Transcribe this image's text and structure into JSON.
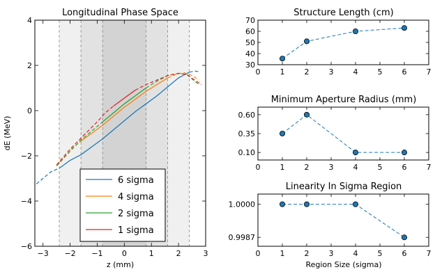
{
  "chart_data": [
    {
      "type": "line",
      "title": "Longitudinal Phase Space",
      "xlabel": "z (mm)",
      "ylabel": "dE (MeV)",
      "xlim": [
        -3.3,
        3.0
      ],
      "ylim": [
        -6,
        4
      ],
      "xticks": [
        -3,
        -2,
        -1,
        0,
        1,
        2,
        3
      ],
      "xtick_labels": [
        "−3",
        "−2",
        "−1",
        "0",
        "1",
        "2",
        "3"
      ],
      "yticks": [
        -6,
        -4,
        -2,
        0,
        2,
        4
      ],
      "ytick_labels": [
        "−6",
        "−4",
        "−2",
        "0",
        "2",
        "4"
      ],
      "shaded_regions": [
        {
          "x": [
            -2.4,
            2.4
          ],
          "color": "#f0f0f0"
        },
        {
          "x": [
            -1.6,
            1.6
          ],
          "color": "#e2e2e2"
        },
        {
          "x": [
            -0.8,
            0.8
          ],
          "color": "#d3d3d3"
        }
      ],
      "vlines": [
        -2.4,
        -1.6,
        -0.8,
        0.8,
        1.6,
        2.4
      ],
      "legend_position": "lower-center",
      "series": [
        {
          "name": "6 sigma",
          "color": "#1f77b4",
          "solid": [
            [
              -2.4,
              -2.55
            ],
            [
              -2.0,
              -2.2
            ],
            [
              -1.6,
              -1.95
            ],
            [
              -1.2,
              -1.6
            ],
            [
              -0.8,
              -1.25
            ],
            [
              -0.4,
              -0.85
            ],
            [
              0,
              -0.45
            ],
            [
              0.4,
              -0.05
            ],
            [
              0.8,
              0.3
            ],
            [
              1.2,
              0.65
            ],
            [
              1.6,
              1.05
            ],
            [
              2.0,
              1.45
            ],
            [
              2.4,
              1.7
            ]
          ],
          "dashed_left": [
            [
              -3.4,
              -3.4
            ],
            [
              -3.0,
              -3.0
            ],
            [
              -2.7,
              -2.7
            ],
            [
              -2.4,
              -2.55
            ]
          ],
          "dashed_right": [
            [
              2.4,
              1.7
            ],
            [
              2.6,
              1.75
            ],
            [
              2.75,
              1.72
            ]
          ]
        },
        {
          "name": "4 sigma",
          "color": "#ff7f0e",
          "solid": [
            [
              -1.6,
              -1.35
            ],
            [
              -1.2,
              -1.0
            ],
            [
              -0.8,
              -0.65
            ],
            [
              -0.4,
              -0.25
            ],
            [
              0,
              0.15
            ],
            [
              0.4,
              0.5
            ],
            [
              0.8,
              0.85
            ],
            [
              1.2,
              1.15
            ],
            [
              1.6,
              1.45
            ]
          ],
          "dashed_left": [
            [
              -2.5,
              -2.45
            ],
            [
              -2.2,
              -2.05
            ],
            [
              -1.9,
              -1.65
            ],
            [
              -1.6,
              -1.35
            ]
          ],
          "dashed_right": [
            [
              1.6,
              1.45
            ],
            [
              1.9,
              1.6
            ],
            [
              2.2,
              1.68
            ],
            [
              2.5,
              1.55
            ],
            [
              2.75,
              1.35
            ]
          ]
        },
        {
          "name": "2 sigma",
          "color": "#2ca02c",
          "solid": [
            [
              -0.8,
              -0.5
            ],
            [
              -0.4,
              -0.1
            ],
            [
              0,
              0.3
            ],
            [
              0.4,
              0.65
            ],
            [
              0.8,
              1.0
            ]
          ],
          "dashed_left": [
            [
              -2.5,
              -2.45
            ],
            [
              -2.0,
              -1.8
            ],
            [
              -1.6,
              -1.3
            ],
            [
              -1.2,
              -0.9
            ],
            [
              -0.8,
              -0.5
            ]
          ],
          "dashed_right": [
            [
              0.8,
              1.0
            ],
            [
              1.2,
              1.3
            ],
            [
              1.6,
              1.55
            ],
            [
              2.0,
              1.65
            ],
            [
              2.3,
              1.6
            ],
            [
              2.6,
              1.3
            ],
            [
              2.75,
              1.15
            ]
          ]
        },
        {
          "name": "1 sigma",
          "color": "#d62728",
          "solid": [
            [
              -0.4,
              0.2
            ],
            [
              0,
              0.55
            ],
            [
              0.4,
              0.9
            ]
          ],
          "dashed_left": [
            [
              -2.5,
              -2.4
            ],
            [
              -2.0,
              -1.7
            ],
            [
              -1.5,
              -1.1
            ],
            [
              -1.0,
              -0.5
            ],
            [
              -0.7,
              -0.1
            ],
            [
              -0.4,
              0.2
            ]
          ],
          "dashed_right": [
            [
              0.4,
              0.9
            ],
            [
              0.8,
              1.15
            ],
            [
              1.2,
              1.35
            ],
            [
              1.6,
              1.55
            ],
            [
              2.0,
              1.65
            ],
            [
              2.3,
              1.6
            ],
            [
              2.6,
              1.35
            ],
            [
              2.85,
              1.15
            ]
          ]
        }
      ]
    },
    {
      "type": "line",
      "title": "Structure Length (cm)",
      "xlim": [
        0,
        7
      ],
      "ylim": [
        30,
        70
      ],
      "xticks": [
        0,
        1,
        2,
        3,
        4,
        5,
        6,
        7
      ],
      "yticks": [
        30,
        40,
        50,
        60,
        70
      ],
      "ytick_labels": [
        "30",
        "40",
        "50",
        "60",
        "70"
      ],
      "x": [
        1,
        2,
        4,
        6
      ],
      "y": [
        35.5,
        51,
        60,
        63
      ]
    },
    {
      "type": "line",
      "title": "Minimum Aperture Radius (mm)",
      "xlim": [
        0,
        7
      ],
      "ylim": [
        0.0,
        0.7
      ],
      "xticks": [
        0,
        1,
        2,
        3,
        4,
        5,
        6,
        7
      ],
      "yticks": [
        0.1,
        0.35,
        0.6
      ],
      "ytick_labels": [
        "0.10",
        "0.35",
        "0.60"
      ],
      "x": [
        1,
        2,
        4,
        6
      ],
      "y": [
        0.35,
        0.6,
        0.1,
        0.1
      ]
    },
    {
      "type": "line",
      "title": "Linearity In Sigma Region",
      "xlabel": "Region Size (sigma)",
      "xlim": [
        0,
        7
      ],
      "ylim": [
        0.99835,
        1.0004
      ],
      "xticks": [
        0,
        1,
        2,
        3,
        4,
        5,
        6,
        7
      ],
      "yticks": [
        0.9987,
        1.0
      ],
      "ytick_labels": [
        "0.9987",
        "1.0000"
      ],
      "x": [
        1,
        2,
        4,
        6
      ],
      "y": [
        1.0,
        1.0,
        1.0,
        0.9987
      ]
    }
  ]
}
